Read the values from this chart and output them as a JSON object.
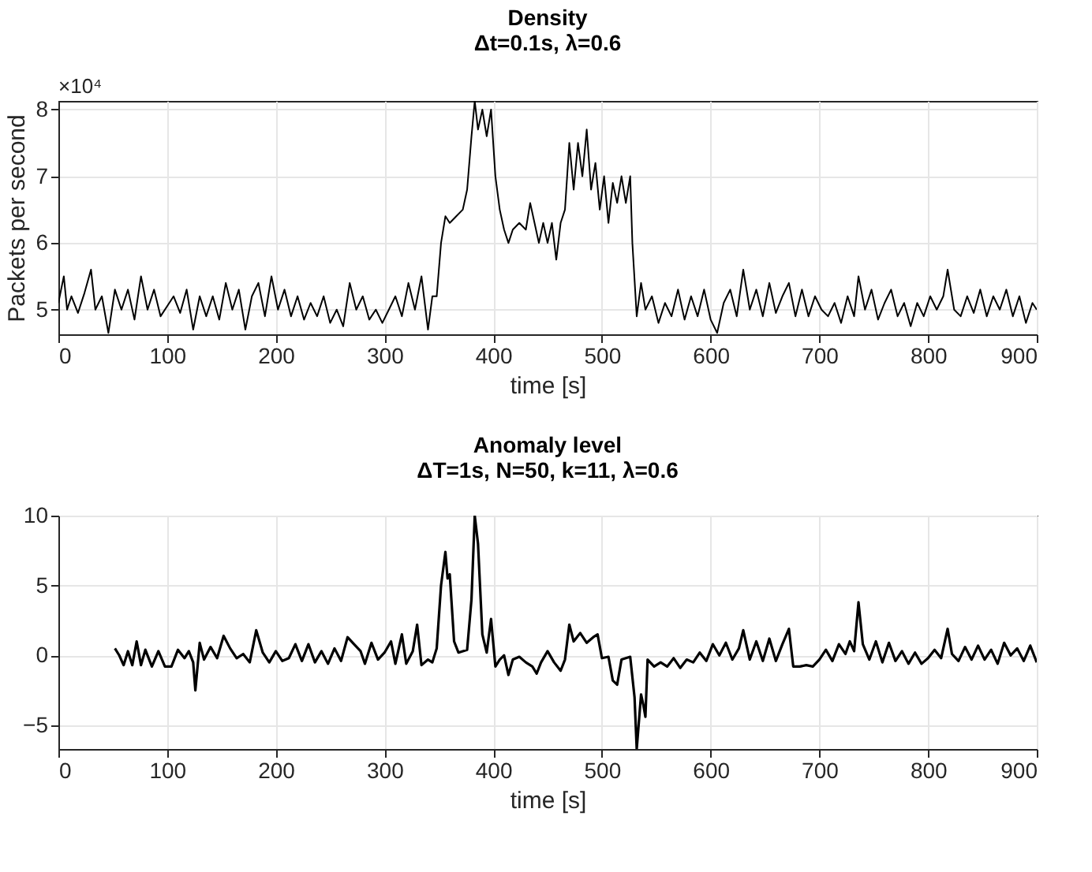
{
  "chart_data": [
    {
      "type": "line",
      "title": "Density",
      "subtitle": "Δt=0.1s, λ=0.6",
      "xlabel": "time [s]",
      "ylabel": "Packets per second",
      "annotations": [
        "×10⁴"
      ],
      "xlim": [
        0,
        900
      ],
      "xticks": [
        0,
        100,
        200,
        300,
        400,
        500,
        600,
        700,
        800,
        900
      ],
      "ylim": [
        4.63,
        8.13
      ],
      "yticks": [
        5,
        6,
        7,
        8
      ],
      "grid": true,
      "line_style": "solid",
      "series": [
        {
          "color": "#000000",
          "x": [
            0,
            5,
            8,
            12,
            18,
            24,
            30,
            34,
            40,
            46,
            52,
            58,
            64,
            70,
            76,
            82,
            88,
            94,
            100,
            106,
            112,
            118,
            124,
            130,
            136,
            142,
            148,
            154,
            160,
            166,
            172,
            178,
            184,
            190,
            196,
            202,
            208,
            214,
            220,
            226,
            232,
            238,
            244,
            250,
            256,
            262,
            268,
            274,
            280,
            286,
            292,
            298,
            304,
            310,
            316,
            322,
            328,
            334,
            340,
            344,
            348,
            352,
            356,
            360,
            366,
            372,
            376,
            380,
            383,
            386,
            390,
            394,
            398,
            402,
            406,
            410,
            414,
            418,
            424,
            430,
            434,
            438,
            442,
            446,
            450,
            454,
            458,
            462,
            466,
            470,
            474,
            478,
            482,
            486,
            490,
            494,
            498,
            502,
            506,
            510,
            514,
            518,
            522,
            526,
            528,
            532,
            536,
            540,
            546,
            552,
            558,
            564,
            570,
            576,
            582,
            588,
            594,
            600,
            606,
            612,
            618,
            624,
            630,
            636,
            642,
            648,
            654,
            660,
            666,
            672,
            678,
            684,
            690,
            696,
            702,
            708,
            714,
            720,
            726,
            732,
            736,
            742,
            748,
            754,
            760,
            766,
            772,
            778,
            784,
            790,
            796,
            802,
            808,
            814,
            818,
            824,
            830,
            836,
            842,
            848,
            854,
            860,
            866,
            872,
            878,
            884,
            890,
            896,
            900
          ],
          "values": [
            5.1,
            5.5,
            5.0,
            5.2,
            4.95,
            5.25,
            5.6,
            5.0,
            5.2,
            4.65,
            5.3,
            5.0,
            5.3,
            4.85,
            5.5,
            5.0,
            5.3,
            4.9,
            5.05,
            5.2,
            4.95,
            5.3,
            4.7,
            5.2,
            4.9,
            5.2,
            4.85,
            5.4,
            5.0,
            5.3,
            4.7,
            5.2,
            5.4,
            4.9,
            5.5,
            5.0,
            5.3,
            4.9,
            5.2,
            4.85,
            5.1,
            4.9,
            5.2,
            4.8,
            5.0,
            4.75,
            5.4,
            5.0,
            5.2,
            4.85,
            5.0,
            4.8,
            5.0,
            5.2,
            4.9,
            5.4,
            5.0,
            5.5,
            4.7,
            5.2,
            5.2,
            6.0,
            6.4,
            6.3,
            6.4,
            6.5,
            6.8,
            7.6,
            8.13,
            7.7,
            8.0,
            7.6,
            8.0,
            7.0,
            6.5,
            6.2,
            6.0,
            6.2,
            6.3,
            6.2,
            6.6,
            6.3,
            6.0,
            6.3,
            6.0,
            6.3,
            5.75,
            6.3,
            6.5,
            7.5,
            6.8,
            7.5,
            7.0,
            7.7,
            6.8,
            7.2,
            6.5,
            7.0,
            6.3,
            6.9,
            6.6,
            7.0,
            6.6,
            7.0,
            6.0,
            4.9,
            5.4,
            5.0,
            5.2,
            4.8,
            5.1,
            4.9,
            5.3,
            4.85,
            5.2,
            4.9,
            5.3,
            4.85,
            4.65,
            5.1,
            5.3,
            4.9,
            5.6,
            5.0,
            5.3,
            4.9,
            5.4,
            4.95,
            5.2,
            5.4,
            4.9,
            5.3,
            4.9,
            5.2,
            5.0,
            4.9,
            5.1,
            4.8,
            5.2,
            4.9,
            5.5,
            5.0,
            5.3,
            4.85,
            5.1,
            5.3,
            4.9,
            5.1,
            4.75,
            5.1,
            4.9,
            5.2,
            5.0,
            5.2,
            5.6,
            5.0,
            4.9,
            5.2,
            4.95,
            5.3,
            4.9,
            5.2,
            5.0,
            5.3,
            4.9,
            5.2,
            4.8,
            5.1,
            5.0
          ]
        }
      ]
    },
    {
      "type": "line",
      "title": "Anomaly level",
      "subtitle": "ΔT=1s, N=50, k=11,  λ=0.6",
      "xlabel": "time [s]",
      "xlim": [
        0,
        900
      ],
      "xticks": [
        0,
        100,
        200,
        300,
        400,
        500,
        600,
        700,
        800,
        900
      ],
      "ylim": [
        -6.7,
        10
      ],
      "yticks": [
        -5,
        0,
        5,
        10
      ],
      "grid": true,
      "line_style": "solid",
      "series": [
        {
          "color": "#000000",
          "x": [
            52,
            56,
            60,
            64,
            68,
            72,
            76,
            80,
            86,
            92,
            98,
            104,
            110,
            116,
            120,
            124,
            126,
            130,
            134,
            140,
            146,
            152,
            158,
            164,
            170,
            176,
            182,
            188,
            194,
            200,
            206,
            212,
            218,
            224,
            230,
            236,
            242,
            248,
            254,
            260,
            266,
            272,
            278,
            282,
            288,
            294,
            300,
            306,
            310,
            316,
            320,
            326,
            330,
            334,
            340,
            344,
            348,
            352,
            356,
            358,
            360,
            364,
            368,
            372,
            376,
            380,
            383,
            386,
            390,
            394,
            398,
            402,
            406,
            410,
            414,
            418,
            424,
            430,
            436,
            440,
            444,
            450,
            456,
            462,
            466,
            470,
            474,
            480,
            486,
            492,
            496,
            500,
            506,
            510,
            514,
            518,
            522,
            526,
            530,
            532,
            536,
            538,
            540,
            542,
            548,
            554,
            560,
            566,
            572,
            578,
            584,
            590,
            596,
            602,
            608,
            614,
            620,
            626,
            630,
            636,
            642,
            648,
            654,
            660,
            666,
            672,
            676,
            682,
            688,
            694,
            700,
            706,
            712,
            718,
            724,
            728,
            732,
            736,
            740,
            746,
            752,
            758,
            764,
            770,
            776,
            782,
            788,
            794,
            800,
            806,
            812,
            818,
            822,
            828,
            834,
            840,
            846,
            852,
            858,
            864,
            870,
            876,
            882,
            888,
            894,
            900
          ],
          "values": [
            0.5,
            0.0,
            -0.7,
            0.3,
            -0.7,
            1.0,
            -0.7,
            0.4,
            -0.8,
            0.3,
            -0.8,
            -0.8,
            0.4,
            -0.2,
            0.3,
            -0.5,
            -2.5,
            0.9,
            -0.3,
            0.6,
            -0.2,
            1.4,
            0.5,
            -0.2,
            0.1,
            -0.5,
            1.8,
            0.2,
            -0.5,
            0.3,
            -0.4,
            -0.2,
            0.8,
            -0.4,
            0.8,
            -0.5,
            0.3,
            -0.6,
            0.5,
            -0.4,
            1.3,
            0.8,
            0.3,
            -0.6,
            0.9,
            -0.3,
            0.2,
            1.0,
            -0.6,
            1.5,
            -0.6,
            0.3,
            2.2,
            -0.7,
            -0.3,
            -0.5,
            0.5,
            5.0,
            7.4,
            5.5,
            5.8,
            1.0,
            0.2,
            0.3,
            0.4,
            4.0,
            10.0,
            8.0,
            1.5,
            0.2,
            2.6,
            -0.8,
            -0.3,
            0.0,
            -1.4,
            -0.3,
            -0.1,
            -0.5,
            -0.8,
            -1.3,
            -0.5,
            0.3,
            -0.5,
            -1.1,
            -0.3,
            2.2,
            1.0,
            1.6,
            0.9,
            1.3,
            1.5,
            -0.2,
            -0.1,
            -1.8,
            -2.1,
            -0.3,
            -0.2,
            -0.1,
            -3.0,
            -6.7,
            -2.8,
            -3.5,
            -4.4,
            -0.3,
            -0.8,
            -0.5,
            -0.8,
            -0.2,
            -0.9,
            -0.3,
            -0.5,
            0.2,
            -0.4,
            0.8,
            0.0,
            0.9,
            -0.3,
            0.5,
            1.8,
            -0.3,
            1.0,
            -0.4,
            1.2,
            -0.4,
            0.8,
            1.9,
            -0.8,
            -0.8,
            -0.7,
            -0.8,
            -0.3,
            0.4,
            -0.4,
            0.8,
            0.1,
            1.0,
            0.3,
            3.8,
            0.8,
            -0.3,
            1.0,
            -0.5,
            0.9,
            -0.4,
            0.3,
            -0.6,
            0.2,
            -0.6,
            -0.2,
            0.4,
            -0.2,
            1.9,
            0.1,
            -0.4,
            0.6,
            -0.3,
            0.7,
            -0.3,
            0.4,
            -0.6,
            0.9,
            0.0,
            0.5,
            -0.4,
            0.7,
            -0.5
          ]
        }
      ]
    }
  ]
}
